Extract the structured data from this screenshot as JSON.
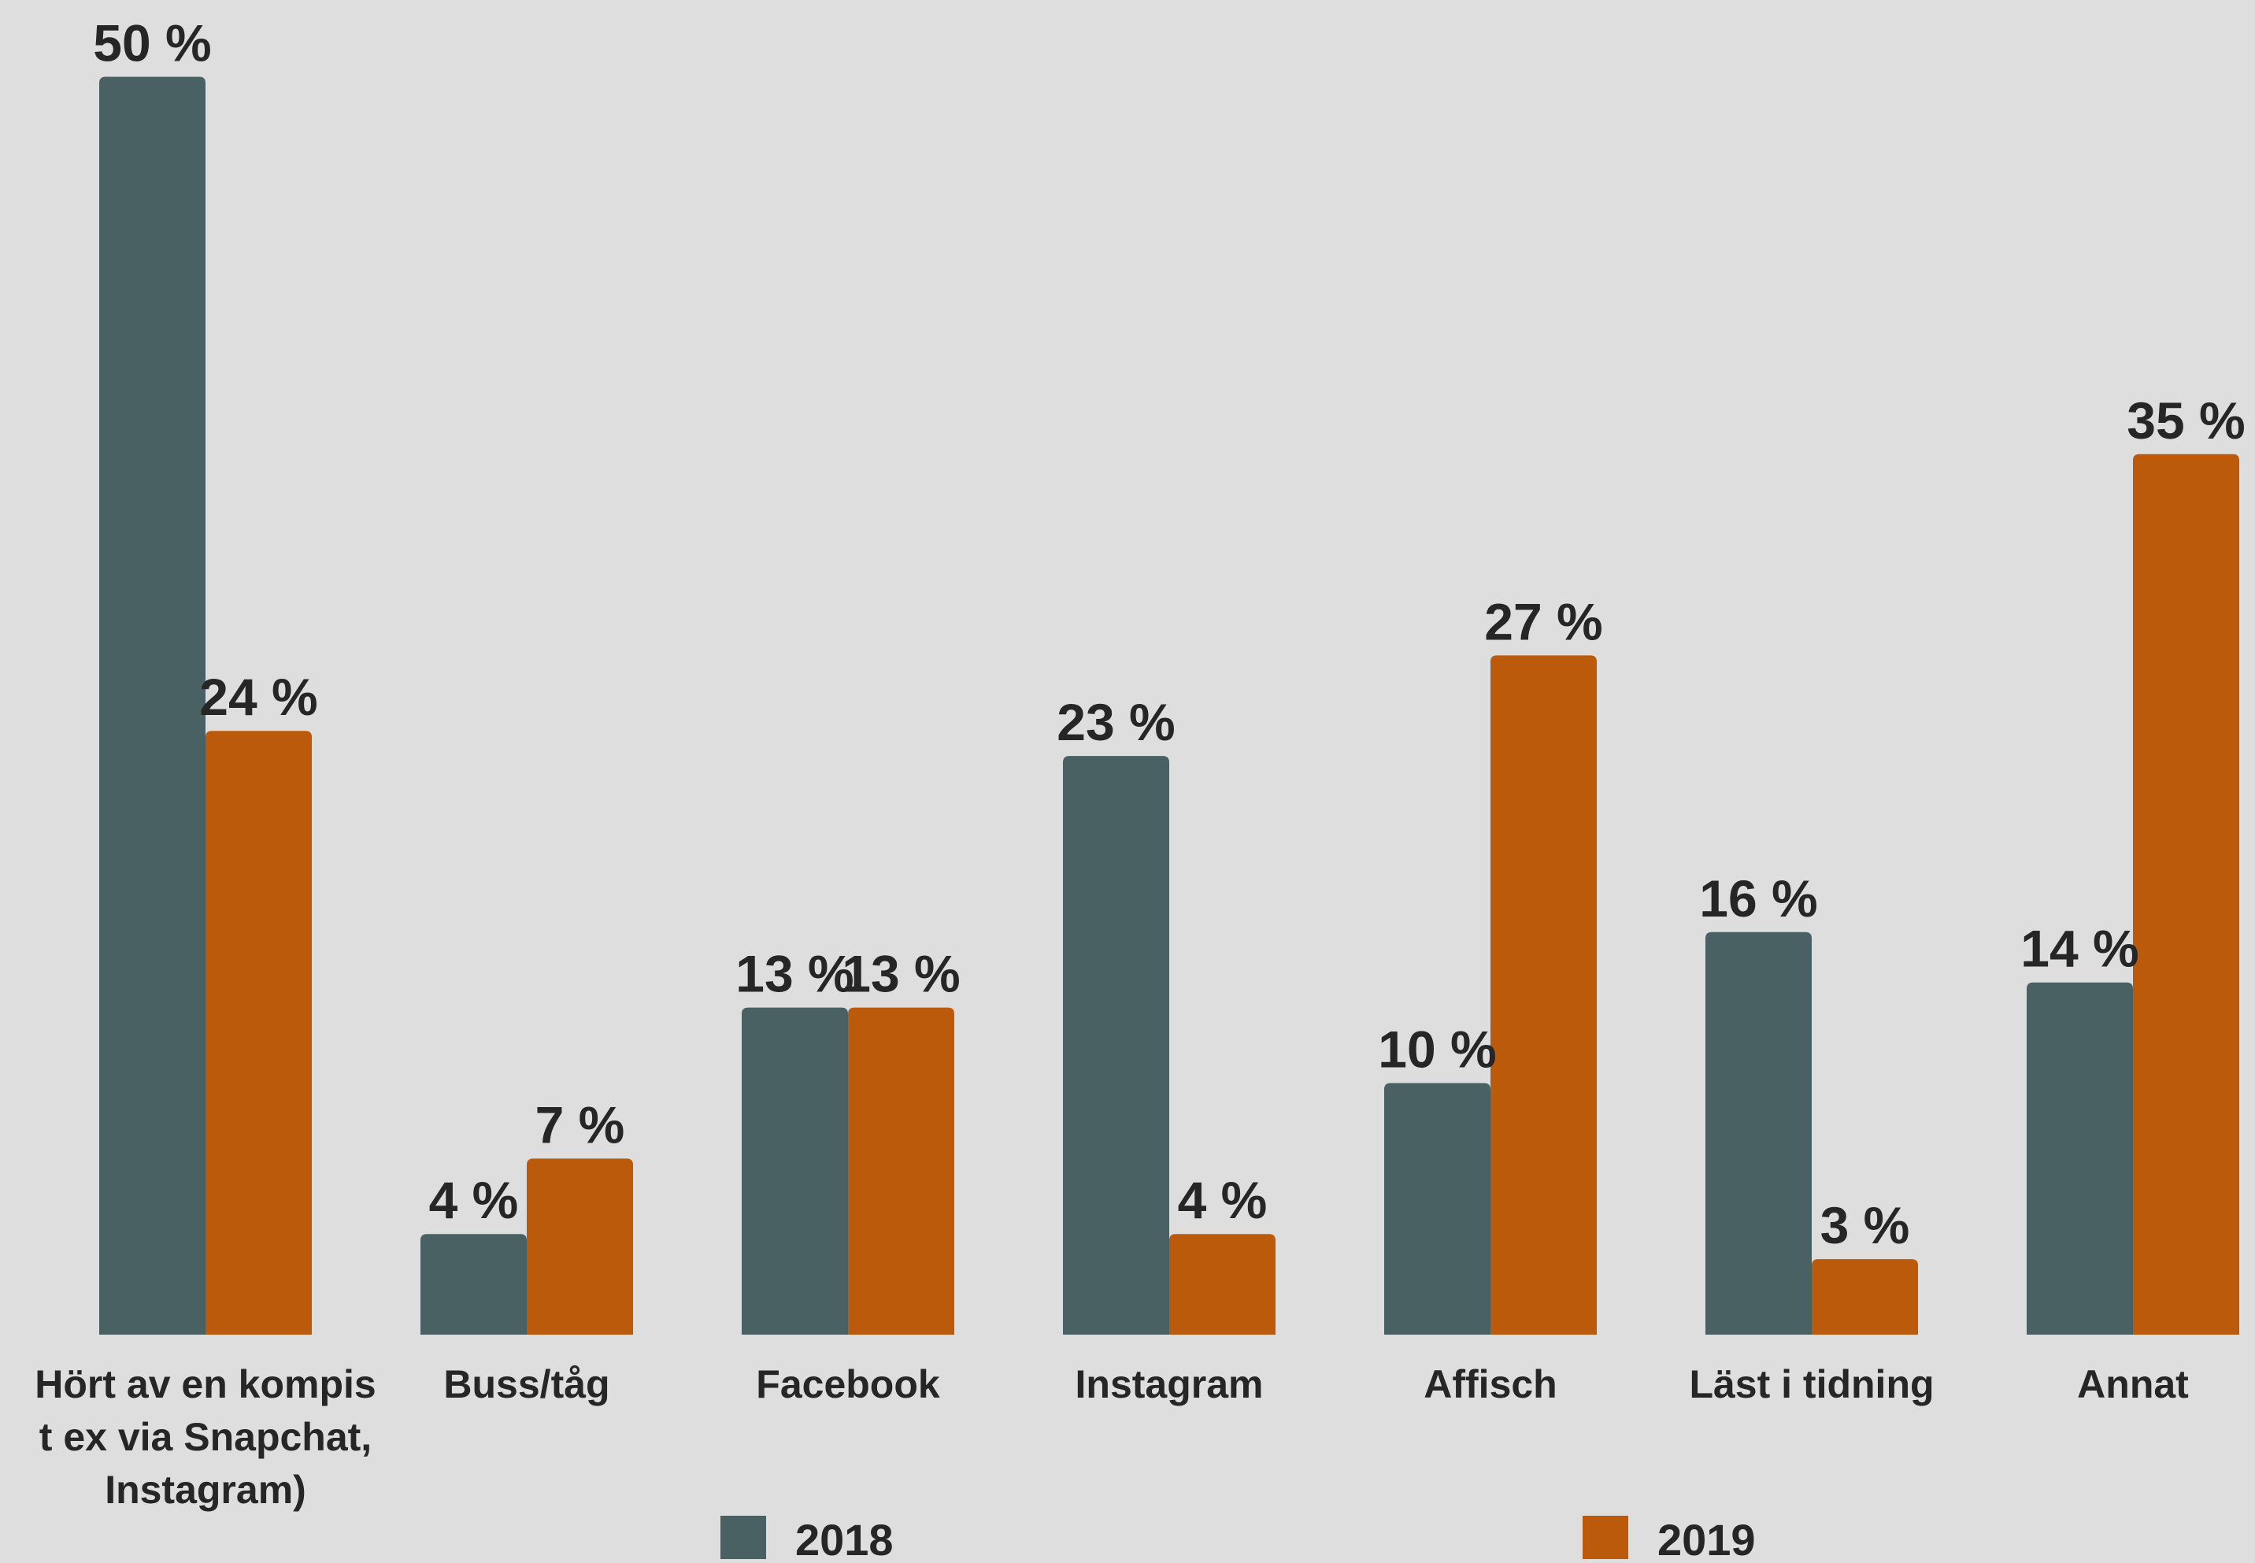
{
  "colors": {
    "background": "#dededf",
    "series_2018": "#4a6163",
    "series_2019": "#bb5a0a",
    "text": "#262626"
  },
  "chart_data": {
    "type": "bar",
    "title": "",
    "xlabel": "",
    "ylabel": "",
    "ylim": [
      0,
      50
    ],
    "grid": false,
    "legend_position": "bottom",
    "value_suffix": " %",
    "categories": [
      [
        "Hört av en kompis",
        "t ex via Snapchat,",
        "Instagram)"
      ],
      [
        "Buss/tåg"
      ],
      [
        "Facebook"
      ],
      [
        "Instagram"
      ],
      [
        "Affisch"
      ],
      [
        "Läst i tidning"
      ],
      [
        "Annat"
      ]
    ],
    "series": [
      {
        "name": "2018",
        "color": "#4a6163",
        "values": [
          50,
          4,
          13,
          23,
          10,
          16,
          14
        ]
      },
      {
        "name": "2019",
        "color": "#bb5a0a",
        "values": [
          24,
          7,
          13,
          4,
          27,
          3,
          35
        ]
      }
    ]
  }
}
